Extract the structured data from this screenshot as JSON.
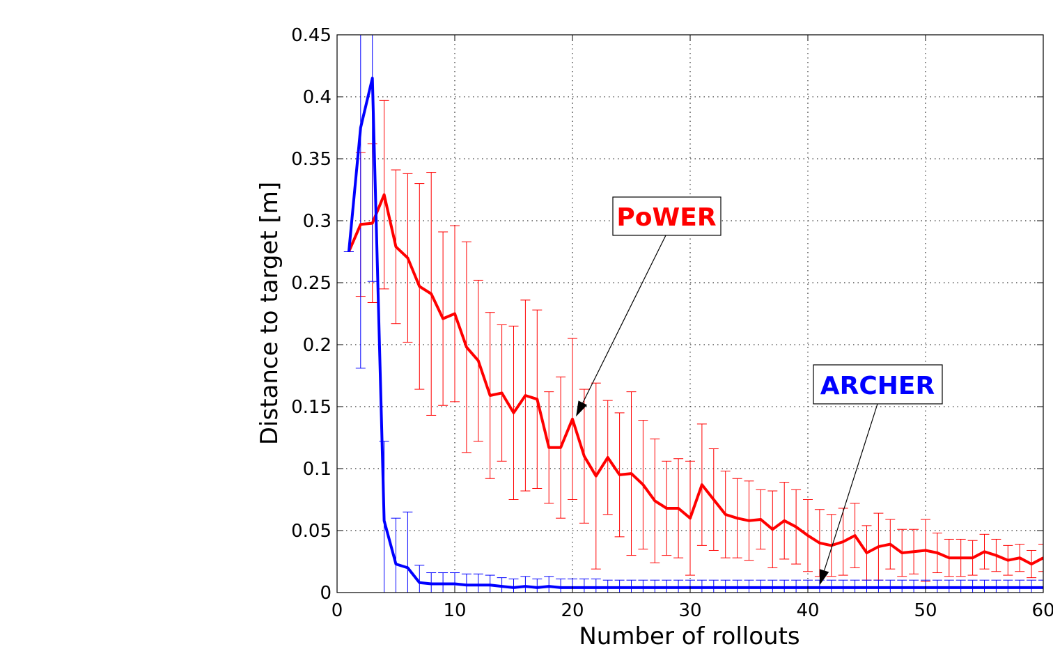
{
  "chart_data": {
    "type": "line",
    "title": "",
    "xlabel": "Number of rollouts",
    "ylabel": "Distance to target [m]",
    "xlim": [
      0,
      60
    ],
    "ylim": [
      0,
      0.45
    ],
    "xticks": [
      "0",
      "10",
      "20",
      "30",
      "40",
      "50",
      "60"
    ],
    "yticks": [
      "0",
      "0.05",
      "0.1",
      "0.15",
      "0.2",
      "0.25",
      "0.3",
      "0.35",
      "0.4",
      "0.45"
    ],
    "grid": true,
    "series": [
      {
        "name": "PoWER",
        "color": "#ff0000",
        "x": [
          1,
          2,
          3,
          4,
          5,
          6,
          7,
          8,
          9,
          10,
          11,
          12,
          13,
          14,
          15,
          16,
          17,
          18,
          19,
          20,
          21,
          22,
          23,
          24,
          25,
          26,
          27,
          28,
          29,
          30,
          31,
          32,
          33,
          34,
          35,
          36,
          37,
          38,
          39,
          40,
          41,
          42,
          43,
          44,
          45,
          46,
          47,
          48,
          49,
          50,
          51,
          52,
          53,
          54,
          55,
          56,
          57,
          58,
          59,
          60
        ],
        "y": [
          0.275,
          0.297,
          0.298,
          0.321,
          0.279,
          0.27,
          0.247,
          0.241,
          0.221,
          0.225,
          0.198,
          0.187,
          0.159,
          0.161,
          0.145,
          0.159,
          0.156,
          0.117,
          0.117,
          0.14,
          0.11,
          0.094,
          0.109,
          0.095,
          0.096,
          0.087,
          0.074,
          0.068,
          0.068,
          0.06,
          0.087,
          0.075,
          0.063,
          0.06,
          0.058,
          0.059,
          0.051,
          0.058,
          0.053,
          0.046,
          0.04,
          0.038,
          0.041,
          0.046,
          0.032,
          0.037,
          0.039,
          0.032,
          0.033,
          0.034,
          0.032,
          0.028,
          0.028,
          0.028,
          0.033,
          0.03,
          0.026,
          0.028,
          0.023,
          0.028
        ],
        "err": [
          0.0,
          0.058,
          0.064,
          0.076,
          0.062,
          0.068,
          0.083,
          0.098,
          0.07,
          0.071,
          0.085,
          0.065,
          0.067,
          0.055,
          0.07,
          0.077,
          0.072,
          0.045,
          0.057,
          0.065,
          0.054,
          0.075,
          0.046,
          0.05,
          0.066,
          0.052,
          0.05,
          0.038,
          0.04,
          0.046,
          0.049,
          0.041,
          0.035,
          0.032,
          0.032,
          0.024,
          0.031,
          0.031,
          0.03,
          0.029,
          0.027,
          0.025,
          0.027,
          0.026,
          0.022,
          0.027,
          0.02,
          0.019,
          0.018,
          0.025,
          0.016,
          0.015,
          0.015,
          0.014,
          0.014,
          0.013,
          0.012,
          0.011,
          0.011,
          0.011
        ]
      },
      {
        "name": "ARCHER",
        "color": "#0000ff",
        "x": [
          1,
          2,
          3,
          4,
          5,
          6,
          7,
          8,
          9,
          10,
          11,
          12,
          13,
          14,
          15,
          16,
          17,
          18,
          19,
          20,
          21,
          22,
          23,
          24,
          25,
          26,
          27,
          28,
          29,
          30,
          31,
          32,
          33,
          34,
          35,
          36,
          37,
          38,
          39,
          40,
          41,
          42,
          43,
          44,
          45,
          46,
          47,
          48,
          49,
          50,
          51,
          52,
          53,
          54,
          55,
          56,
          57,
          58,
          59,
          60
        ],
        "y": [
          0.275,
          0.375,
          0.415,
          0.058,
          0.023,
          0.02,
          0.008,
          0.007,
          0.007,
          0.007,
          0.006,
          0.006,
          0.006,
          0.005,
          0.004,
          0.005,
          0.004,
          0.005,
          0.004,
          0.004,
          0.004,
          0.004,
          0.004,
          0.004,
          0.004,
          0.004,
          0.004,
          0.004,
          0.004,
          0.004,
          0.004,
          0.004,
          0.004,
          0.004,
          0.004,
          0.004,
          0.004,
          0.004,
          0.004,
          0.004,
          0.004,
          0.004,
          0.004,
          0.004,
          0.004,
          0.004,
          0.004,
          0.004,
          0.004,
          0.004,
          0.004,
          0.004,
          0.004,
          0.004,
          0.004,
          0.004,
          0.004,
          0.004,
          0.004,
          0.004
        ],
        "err": [
          0.0,
          0.194,
          0.164,
          0.064,
          0.037,
          0.045,
          0.014,
          0.009,
          0.009,
          0.009,
          0.009,
          0.009,
          0.008,
          0.007,
          0.007,
          0.008,
          0.007,
          0.008,
          0.007,
          0.007,
          0.007,
          0.007,
          0.006,
          0.006,
          0.006,
          0.006,
          0.006,
          0.006,
          0.006,
          0.006,
          0.006,
          0.006,
          0.006,
          0.006,
          0.006,
          0.006,
          0.006,
          0.006,
          0.006,
          0.006,
          0.006,
          0.006,
          0.006,
          0.006,
          0.006,
          0.006,
          0.006,
          0.006,
          0.006,
          0.006,
          0.006,
          0.006,
          0.006,
          0.006,
          0.006,
          0.006,
          0.006,
          0.006,
          0.006,
          0.006
        ]
      }
    ],
    "annotations": [
      {
        "text": "PoWER",
        "color": "#ff0000",
        "arrow_to": [
          20.3,
          0.142
        ]
      },
      {
        "text": "ARCHER",
        "color": "#0000ff",
        "arrow_to": [
          41.0,
          0.006
        ]
      }
    ]
  }
}
